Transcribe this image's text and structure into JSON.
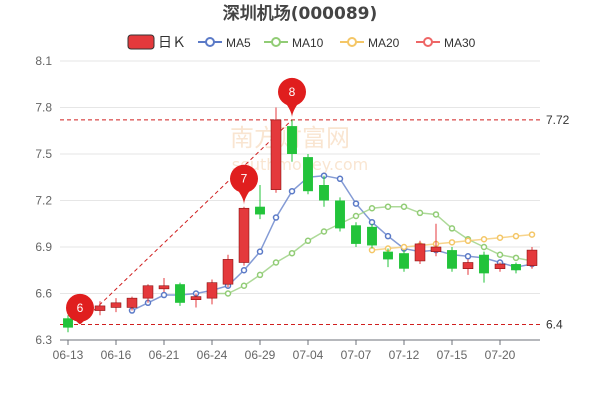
{
  "header": {
    "title": "深圳机场(000089)"
  },
  "legend": [
    {
      "id": "k",
      "label": "日Ｋ",
      "color": "#e4393c"
    },
    {
      "id": "ma5",
      "label": "MA5",
      "color": "#5b7ac7"
    },
    {
      "id": "ma10",
      "label": "MA10",
      "color": "#91cc75"
    },
    {
      "id": "ma20",
      "label": "MA20",
      "color": "#f4c666"
    },
    {
      "id": "ma30",
      "label": "MA30",
      "color": "#ee6666"
    }
  ],
  "watermark": "南方财富网",
  "watermark_sub": "southmoney.com",
  "chart_data": {
    "type": "candlestick",
    "title": "深圳机场(000089)",
    "ylim": [
      6.3,
      8.1
    ],
    "yticks": [
      6.3,
      6.6,
      6.9,
      7.2,
      7.5,
      7.8,
      8.1
    ],
    "xtick_labels": [
      "06-13",
      "06-16",
      "06-21",
      "06-24",
      "06-29",
      "07-04",
      "07-07",
      "07-12",
      "07-15",
      "07-20"
    ],
    "up_color": "#e4393c",
    "down_color": "#22c33a",
    "candles": [
      {
        "date": "06-13",
        "open": 6.44,
        "close": 6.38,
        "high": 6.46,
        "low": 6.35
      },
      {
        "date": "06-14",
        "open": 6.45,
        "close": 6.5,
        "high": 6.53,
        "low": 6.43
      },
      {
        "date": "06-15",
        "open": 6.49,
        "close": 6.52,
        "high": 6.55,
        "low": 6.46
      },
      {
        "date": "06-16",
        "open": 6.51,
        "close": 6.54,
        "high": 6.57,
        "low": 6.48
      },
      {
        "date": "06-17",
        "open": 6.51,
        "close": 6.57,
        "high": 6.58,
        "low": 6.49
      },
      {
        "date": "06-20",
        "open": 6.57,
        "close": 6.65,
        "high": 6.66,
        "low": 6.54
      },
      {
        "date": "06-21",
        "open": 6.63,
        "close": 6.65,
        "high": 6.7,
        "low": 6.61
      },
      {
        "date": "06-22",
        "open": 6.66,
        "close": 6.54,
        "high": 6.67,
        "low": 6.52
      },
      {
        "date": "06-23",
        "open": 6.56,
        "close": 6.58,
        "high": 6.6,
        "low": 6.51
      },
      {
        "date": "06-24",
        "open": 6.57,
        "close": 6.67,
        "high": 6.69,
        "low": 6.53
      },
      {
        "date": "06-27",
        "open": 6.66,
        "close": 6.82,
        "high": 6.85,
        "low": 6.64
      },
      {
        "date": "06-28",
        "open": 6.8,
        "close": 7.15,
        "high": 7.16,
        "low": 6.78
      },
      {
        "date": "06-29",
        "open": 7.16,
        "close": 7.11,
        "high": 7.3,
        "low": 7.08
      },
      {
        "date": "06-30",
        "open": 7.27,
        "close": 7.72,
        "high": 7.8,
        "low": 7.25
      },
      {
        "date": "07-01",
        "open": 7.68,
        "close": 7.5,
        "high": 7.72,
        "low": 7.45
      },
      {
        "date": "07-04",
        "open": 7.48,
        "close": 7.26,
        "high": 7.5,
        "low": 7.24
      },
      {
        "date": "07-05",
        "open": 7.3,
        "close": 7.2,
        "high": 7.36,
        "low": 7.16
      },
      {
        "date": "07-06",
        "open": 7.2,
        "close": 7.02,
        "high": 7.22,
        "low": 7.0
      },
      {
        "date": "07-07",
        "open": 7.04,
        "close": 6.92,
        "high": 7.06,
        "low": 6.9
      },
      {
        "date": "07-08",
        "open": 7.03,
        "close": 6.91,
        "high": 7.05,
        "low": 6.89
      },
      {
        "date": "07-11",
        "open": 6.87,
        "close": 6.82,
        "high": 6.89,
        "low": 6.77
      },
      {
        "date": "07-12",
        "open": 6.86,
        "close": 6.76,
        "high": 6.88,
        "low": 6.74
      },
      {
        "date": "07-13",
        "open": 6.81,
        "close": 6.92,
        "high": 6.94,
        "low": 6.79
      },
      {
        "date": "07-14",
        "open": 6.87,
        "close": 6.9,
        "high": 7.05,
        "low": 6.84
      },
      {
        "date": "07-15",
        "open": 6.88,
        "close": 6.76,
        "high": 6.9,
        "low": 6.74
      },
      {
        "date": "07-18",
        "open": 6.76,
        "close": 6.8,
        "high": 6.82,
        "low": 6.72
      },
      {
        "date": "07-19",
        "open": 6.85,
        "close": 6.73,
        "high": 6.87,
        "low": 6.67
      },
      {
        "date": "07-20",
        "open": 6.76,
        "close": 6.79,
        "high": 6.8,
        "low": 6.74
      },
      {
        "date": "07-21",
        "open": 6.79,
        "close": 6.75,
        "high": 6.8,
        "low": 6.73
      },
      {
        "date": "07-22",
        "open": 6.78,
        "close": 6.88,
        "high": 6.9,
        "low": 6.76
      }
    ],
    "series": [
      {
        "id": "ma5",
        "values": [
          null,
          null,
          null,
          null,
          6.49,
          6.54,
          6.59,
          6.59,
          6.6,
          6.62,
          6.65,
          6.75,
          6.87,
          7.09,
          7.26,
          7.35,
          7.36,
          7.34,
          7.18,
          7.06,
          6.97,
          6.89,
          6.87,
          6.88,
          6.85,
          6.84,
          6.83,
          6.8,
          6.77,
          6.79
        ]
      },
      {
        "id": "ma10",
        "values": [
          null,
          null,
          null,
          null,
          null,
          null,
          null,
          null,
          null,
          6.6,
          6.6,
          6.65,
          6.72,
          6.8,
          6.86,
          6.94,
          7.0,
          7.05,
          7.1,
          7.15,
          7.16,
          7.16,
          7.12,
          7.11,
          7.02,
          6.95,
          6.9,
          6.85,
          6.83,
          6.81
        ]
      },
      {
        "id": "ma20",
        "values": [
          null,
          null,
          null,
          null,
          null,
          null,
          null,
          null,
          null,
          null,
          null,
          null,
          null,
          null,
          null,
          null,
          null,
          null,
          null,
          6.88,
          6.89,
          6.9,
          6.91,
          6.92,
          6.93,
          6.94,
          6.95,
          6.96,
          6.97,
          6.98
        ]
      },
      {
        "id": "ma30",
        "values": []
      }
    ],
    "ref_lines": [
      {
        "value": 7.72,
        "label": "7.72"
      },
      {
        "value": 6.4,
        "label": "6.4"
      }
    ],
    "pins": [
      {
        "index": 1,
        "label": "6"
      },
      {
        "index": 11,
        "label": "7"
      },
      {
        "index": 14,
        "label": "8"
      }
    ]
  }
}
